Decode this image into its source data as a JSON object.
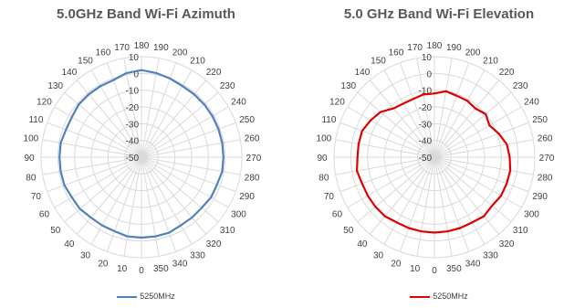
{
  "chart_data": [
    {
      "type": "polar-line",
      "title": "5.0GHz Band Wi-Fi Azimuth",
      "angles": [
        0,
        10,
        20,
        30,
        40,
        50,
        60,
        70,
        80,
        90,
        100,
        110,
        120,
        130,
        140,
        150,
        160,
        170,
        180,
        190,
        200,
        210,
        220,
        230,
        240,
        250,
        260,
        270,
        280,
        290,
        300,
        310,
        320,
        330,
        340,
        350
      ],
      "angle_labels": [
        "0",
        "10",
        "20",
        "30",
        "40",
        "50",
        "60",
        "70",
        "80",
        "90",
        "100",
        "110",
        "120",
        "130",
        "140",
        "150",
        "160",
        "170",
        "180",
        "190",
        "200",
        "210",
        "220",
        "230",
        "240",
        "250",
        "260",
        "270",
        "280",
        "290",
        "300",
        "310",
        "320",
        "330",
        "340",
        "350"
      ],
      "radial_ticks": [
        "10",
        "0",
        "-10",
        "-20",
        "-30",
        "-40",
        "-50"
      ],
      "rlim": [
        -50,
        10
      ],
      "series": [
        {
          "name": "5250MHz",
          "color": "#4f81bd",
          "values": [
            -2,
            -2,
            -3,
            -3,
            -3,
            -2,
            -2,
            -1,
            -1,
            -1,
            -1,
            -2,
            -2,
            -1,
            -1,
            -1,
            -1,
            1,
            2,
            1,
            0,
            -1,
            -1,
            -1,
            -1,
            -1,
            -1,
            -1,
            -1,
            -2,
            -2,
            -3,
            -3,
            -3,
            -2,
            -2
          ]
        }
      ],
      "grid": true,
      "legend_position": "bottom"
    },
    {
      "type": "polar-line",
      "title": "5.0 GHz Band Wi-Fi Elevation",
      "angles": [
        0,
        10,
        20,
        30,
        40,
        50,
        60,
        70,
        80,
        90,
        100,
        110,
        120,
        130,
        140,
        150,
        160,
        170,
        180,
        190,
        200,
        210,
        220,
        230,
        240,
        250,
        260,
        270,
        280,
        290,
        300,
        310,
        320,
        330,
        340,
        350
      ],
      "angle_labels": [
        "0",
        "10",
        "20",
        "30",
        "40",
        "50",
        "60",
        "70",
        "80",
        "90",
        "100",
        "110",
        "120",
        "130",
        "140",
        "150",
        "160",
        "170",
        "180",
        "190",
        "200",
        "210",
        "220",
        "230",
        "240",
        "250",
        "260",
        "270",
        "280",
        "290",
        "300",
        "310",
        "320",
        "330",
        "340",
        "350"
      ],
      "radial_ticks": [
        "10",
        "0",
        "-10",
        "-20",
        "-30",
        "-40",
        "-50"
      ],
      "rlim": [
        -50,
        10
      ],
      "series": [
        {
          "name": "5250MHz",
          "color": "#e00000",
          "values": [
            -5,
            -5,
            -5,
            -5,
            -4,
            -4,
            -4,
            -4,
            -3,
            -4,
            -4,
            -4,
            -6,
            -8,
            -12,
            -13,
            -13,
            -12,
            -12,
            -10,
            -11,
            -11,
            -12,
            -10,
            -12,
            -9,
            -6,
            -5,
            -4,
            -4,
            -4,
            -5,
            -4,
            -5,
            -5,
            -5
          ]
        }
      ],
      "grid": true,
      "legend_position": "bottom"
    }
  ]
}
